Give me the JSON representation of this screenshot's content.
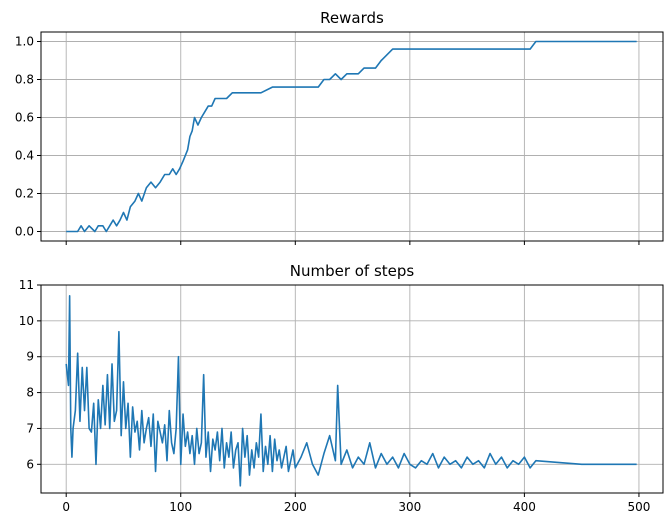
{
  "chart_data": [
    {
      "type": "line",
      "title": "Rewards",
      "xlabel": "",
      "ylabel": "",
      "xlim": [
        -22,
        521
      ],
      "ylim": [
        -0.05,
        1.05
      ],
      "xticks": [
        0,
        100,
        200,
        300,
        400,
        500
      ],
      "xtick_labels": [
        "",
        "",
        "",
        "",
        "",
        ""
      ],
      "yticks": [
        0.0,
        0.2,
        0.4,
        0.6,
        0.8,
        1.0
      ],
      "ytick_labels": [
        "0.0",
        "0.2",
        "0.4",
        "0.6",
        "0.8",
        "1.0"
      ],
      "grid": true,
      "color": "#1f77b4",
      "series": [
        {
          "x": [
            0,
            10,
            13,
            16,
            20,
            25,
            28,
            32,
            35,
            38,
            41,
            44,
            47,
            50,
            53,
            56,
            60,
            63,
            66,
            70,
            74,
            78,
            82,
            86,
            90,
            93,
            96,
            99,
            102,
            104,
            106,
            108,
            110,
            112,
            115,
            118,
            121,
            124,
            127,
            130,
            135,
            140,
            145,
            150,
            160,
            165,
            170,
            180,
            190,
            195,
            200,
            210,
            220,
            225,
            230,
            235,
            240,
            245,
            250,
            255,
            260,
            265,
            270,
            275,
            280,
            285,
            300,
            315,
            320,
            380,
            385,
            395,
            400,
            405,
            410,
            420,
            450,
            498
          ],
          "y": [
            0.0,
            0.0,
            0.03,
            0.0,
            0.03,
            0.0,
            0.03,
            0.03,
            0.0,
            0.03,
            0.06,
            0.03,
            0.06,
            0.1,
            0.06,
            0.13,
            0.16,
            0.2,
            0.16,
            0.23,
            0.26,
            0.23,
            0.26,
            0.3,
            0.3,
            0.33,
            0.3,
            0.33,
            0.37,
            0.4,
            0.43,
            0.5,
            0.53,
            0.6,
            0.56,
            0.6,
            0.63,
            0.66,
            0.66,
            0.7,
            0.7,
            0.7,
            0.73,
            0.73,
            0.73,
            0.73,
            0.73,
            0.76,
            0.76,
            0.76,
            0.76,
            0.76,
            0.76,
            0.8,
            0.8,
            0.83,
            0.8,
            0.83,
            0.83,
            0.83,
            0.86,
            0.86,
            0.86,
            0.9,
            0.93,
            0.96,
            0.96,
            0.96,
            0.96,
            0.96,
            0.96,
            0.96,
            0.96,
            0.96,
            1.0,
            1.0,
            1.0,
            1.0
          ]
        }
      ]
    },
    {
      "type": "line",
      "title": "Number of steps",
      "xlabel": "",
      "ylabel": "",
      "xlim": [
        -22,
        521
      ],
      "ylim": [
        5.2,
        11.0
      ],
      "xticks": [
        0,
        100,
        200,
        300,
        400,
        500
      ],
      "xtick_labels": [
        "0",
        "100",
        "200",
        "300",
        "400",
        "500"
      ],
      "yticks": [
        6,
        7,
        8,
        9,
        10,
        11
      ],
      "ytick_labels": [
        "6",
        "7",
        "8",
        "9",
        "10",
        "11"
      ],
      "grid": true,
      "color": "#1f77b4",
      "series": [
        {
          "x": [
            0,
            2,
            3,
            4,
            5,
            6,
            8,
            10,
            12,
            14,
            16,
            18,
            20,
            22,
            24,
            26,
            28,
            30,
            32,
            34,
            36,
            38,
            40,
            42,
            44,
            46,
            48,
            50,
            52,
            54,
            56,
            58,
            60,
            62,
            64,
            66,
            68,
            70,
            72,
            74,
            76,
            78,
            80,
            82,
            84,
            86,
            88,
            90,
            92,
            94,
            96,
            98,
            100,
            102,
            104,
            106,
            108,
            110,
            112,
            114,
            116,
            118,
            120,
            122,
            124,
            126,
            128,
            130,
            132,
            134,
            136,
            138,
            140,
            142,
            144,
            146,
            148,
            150,
            152,
            154,
            156,
            158,
            160,
            162,
            164,
            166,
            168,
            170,
            172,
            174,
            176,
            178,
            180,
            182,
            184,
            186,
            188,
            190,
            192,
            194,
            196,
            198,
            200,
            205,
            210,
            215,
            220,
            225,
            230,
            235,
            237,
            240,
            245,
            250,
            255,
            260,
            265,
            270,
            275,
            280,
            285,
            290,
            295,
            300,
            305,
            310,
            315,
            320,
            325,
            330,
            335,
            340,
            345,
            350,
            355,
            360,
            365,
            370,
            375,
            380,
            385,
            390,
            395,
            400,
            405,
            410,
            450,
            498
          ],
          "y": [
            8.8,
            8.2,
            10.7,
            7.0,
            6.2,
            7.0,
            7.5,
            9.1,
            7.2,
            8.7,
            7.5,
            8.7,
            7.0,
            6.9,
            7.7,
            6.0,
            7.8,
            7.0,
            8.2,
            7.1,
            8.5,
            7.0,
            8.8,
            7.2,
            7.5,
            9.7,
            6.8,
            8.3,
            7.0,
            7.7,
            6.2,
            7.6,
            6.9,
            7.2,
            6.4,
            7.5,
            6.6,
            7.0,
            7.3,
            6.5,
            7.4,
            5.8,
            7.2,
            6.9,
            6.6,
            7.1,
            6.1,
            7.5,
            6.6,
            6.3,
            7.0,
            9.0,
            6.0,
            7.4,
            6.5,
            6.9,
            6.3,
            6.8,
            6.0,
            7.0,
            6.3,
            6.6,
            8.5,
            6.2,
            6.9,
            5.8,
            6.7,
            6.4,
            6.9,
            6.1,
            7.0,
            5.9,
            6.6,
            6.2,
            6.9,
            5.9,
            6.4,
            6.6,
            5.4,
            7.0,
            6.2,
            6.8,
            5.7,
            6.4,
            5.9,
            6.6,
            6.2,
            7.4,
            5.8,
            6.5,
            6.0,
            6.8,
            5.8,
            6.7,
            6.1,
            6.4,
            5.9,
            6.2,
            6.5,
            5.8,
            6.1,
            6.4,
            5.9,
            6.2,
            6.6,
            6.0,
            5.7,
            6.3,
            6.8,
            6.1,
            8.2,
            6.0,
            6.4,
            5.9,
            6.2,
            6.0,
            6.6,
            5.9,
            6.3,
            6.0,
            6.2,
            5.9,
            6.3,
            6.0,
            5.9,
            6.1,
            6.0,
            6.3,
            5.9,
            6.2,
            6.0,
            6.1,
            5.9,
            6.2,
            6.0,
            6.1,
            5.9,
            6.3,
            6.0,
            6.2,
            5.9,
            6.1,
            6.0,
            6.2,
            5.9,
            6.1,
            6.0,
            6.0
          ]
        }
      ]
    }
  ]
}
